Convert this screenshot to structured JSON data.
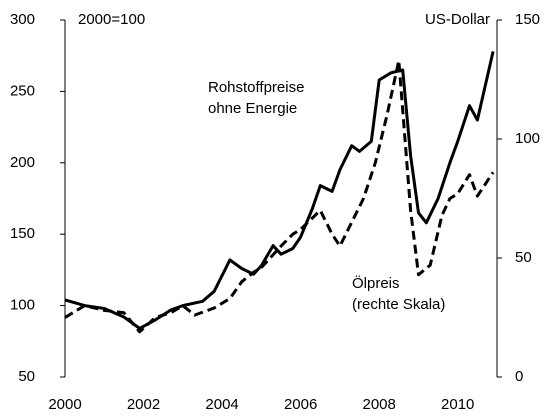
{
  "chart_data": {
    "type": "line",
    "y_label": "2000=100",
    "y2_label": "US-Dollar",
    "annotations": [
      [
        "Rohstoffpreise",
        "ohne Energie"
      ],
      [
        "Ölpreis",
        "(rechte Skala)"
      ]
    ],
    "xlim": [
      2000,
      2011
    ],
    "xticks": [
      2000,
      2002,
      2004,
      2006,
      2008,
      2010
    ],
    "ylim": [
      50,
      300
    ],
    "yticks": [
      50,
      100,
      150,
      200,
      250,
      300
    ],
    "y2lim": [
      0,
      150
    ],
    "y2ticks": [
      0,
      50,
      100,
      150
    ],
    "series": [
      {
        "name": "Rohstoffpreise ohne Energie",
        "color": "#000000",
        "dash": false,
        "x": [
          2000.0,
          2000.5,
          2001.0,
          2001.5,
          2001.9,
          2002.3,
          2002.7,
          2003.0,
          2003.5,
          2003.8,
          2004.2,
          2004.5,
          2004.8,
          2005.0,
          2005.3,
          2005.5,
          2005.8,
          2006.0,
          2006.3,
          2006.5,
          2006.8,
          2007.0,
          2007.3,
          2007.5,
          2007.8,
          2008.0,
          2008.3,
          2008.6,
          2008.8,
          2009.0,
          2009.2,
          2009.5,
          2009.8,
          2010.0,
          2010.3,
          2010.5,
          2010.9
        ],
        "values": [
          104,
          100,
          98,
          92,
          84,
          90,
          97,
          100,
          103,
          110,
          132,
          126,
          122,
          128,
          142,
          136,
          140,
          148,
          168,
          184,
          180,
          195,
          212,
          208,
          215,
          258,
          263,
          265,
          205,
          165,
          158,
          175,
          200,
          215,
          240,
          230,
          278
        ]
      },
      {
        "name": "Ölpreis",
        "color": "#000000",
        "dash": true,
        "axis": "y2",
        "x": [
          2000.0,
          2000.5,
          2001.0,
          2001.5,
          2001.9,
          2002.3,
          2002.7,
          2003.0,
          2003.3,
          2003.8,
          2004.2,
          2004.5,
          2004.8,
          2005.0,
          2005.5,
          2005.8,
          2006.0,
          2006.5,
          2006.8,
          2007.0,
          2007.3,
          2007.6,
          2007.9,
          2008.2,
          2008.5,
          2008.8,
          2009.0,
          2009.3,
          2009.6,
          2009.8,
          2010.0,
          2010.3,
          2010.5,
          2010.9
        ],
        "values": [
          25,
          30,
          28,
          27,
          19,
          25,
          27,
          30,
          26,
          29,
          33,
          40,
          44,
          46,
          55,
          60,
          62,
          70,
          60,
          55,
          65,
          75,
          90,
          110,
          133,
          70,
          43,
          47,
          68,
          75,
          77,
          85,
          76,
          86
        ]
      }
    ]
  }
}
